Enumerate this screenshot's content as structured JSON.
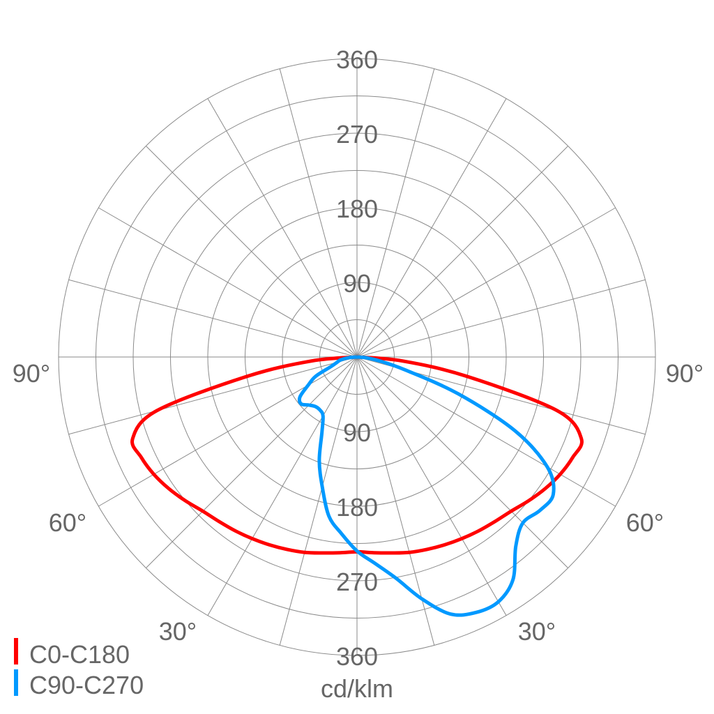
{
  "chart_data": {
    "type": "polar",
    "unit_label": "cd/klm",
    "radial_max": 360,
    "radial_ticks": [
      90,
      180,
      270,
      360
    ],
    "radial_tick_labels": [
      "90",
      "180",
      "270",
      "360"
    ],
    "grid_ring_step": 45,
    "grid_spoke_step_deg": 15,
    "grid": true,
    "angle_labels": [
      "90°",
      "60°",
      "30°",
      "30°",
      "60°",
      "90°"
    ],
    "legend_position": "bottom-left",
    "angles": [
      -90,
      -85,
      -80,
      -75,
      -70,
      -65,
      -60,
      -55,
      -50,
      -45,
      -40,
      -35,
      -30,
      -25,
      -20,
      -15,
      -10,
      -5,
      0,
      5,
      10,
      15,
      20,
      25,
      30,
      35,
      40,
      45,
      50,
      55,
      60,
      65,
      70,
      75,
      80,
      85,
      90
    ],
    "series": [
      {
        "name": "C0-C180",
        "color": "#ff0000",
        "values": [
          0,
          55,
          135,
          250,
          288,
          287,
          283,
          277,
          270,
          263,
          259,
          256,
          253,
          250,
          247,
          244,
          240,
          237,
          235,
          237,
          240,
          244,
          247,
          250,
          253,
          256,
          259,
          263,
          270,
          277,
          283,
          287,
          288,
          250,
          135,
          55,
          0
        ]
      },
      {
        "name": "C90-C270",
        "color": "#0099ff",
        "values": [
          0,
          10,
          20,
          25,
          33,
          55,
          68,
          84,
          88,
          82,
          78,
          78,
          82,
          100,
          133,
          162,
          195,
          214,
          234,
          250,
          271,
          302,
          330,
          340,
          341,
          328,
          298,
          283,
          288,
          289,
          265,
          210,
          130,
          60,
          28,
          12,
          0
        ]
      }
    ]
  }
}
